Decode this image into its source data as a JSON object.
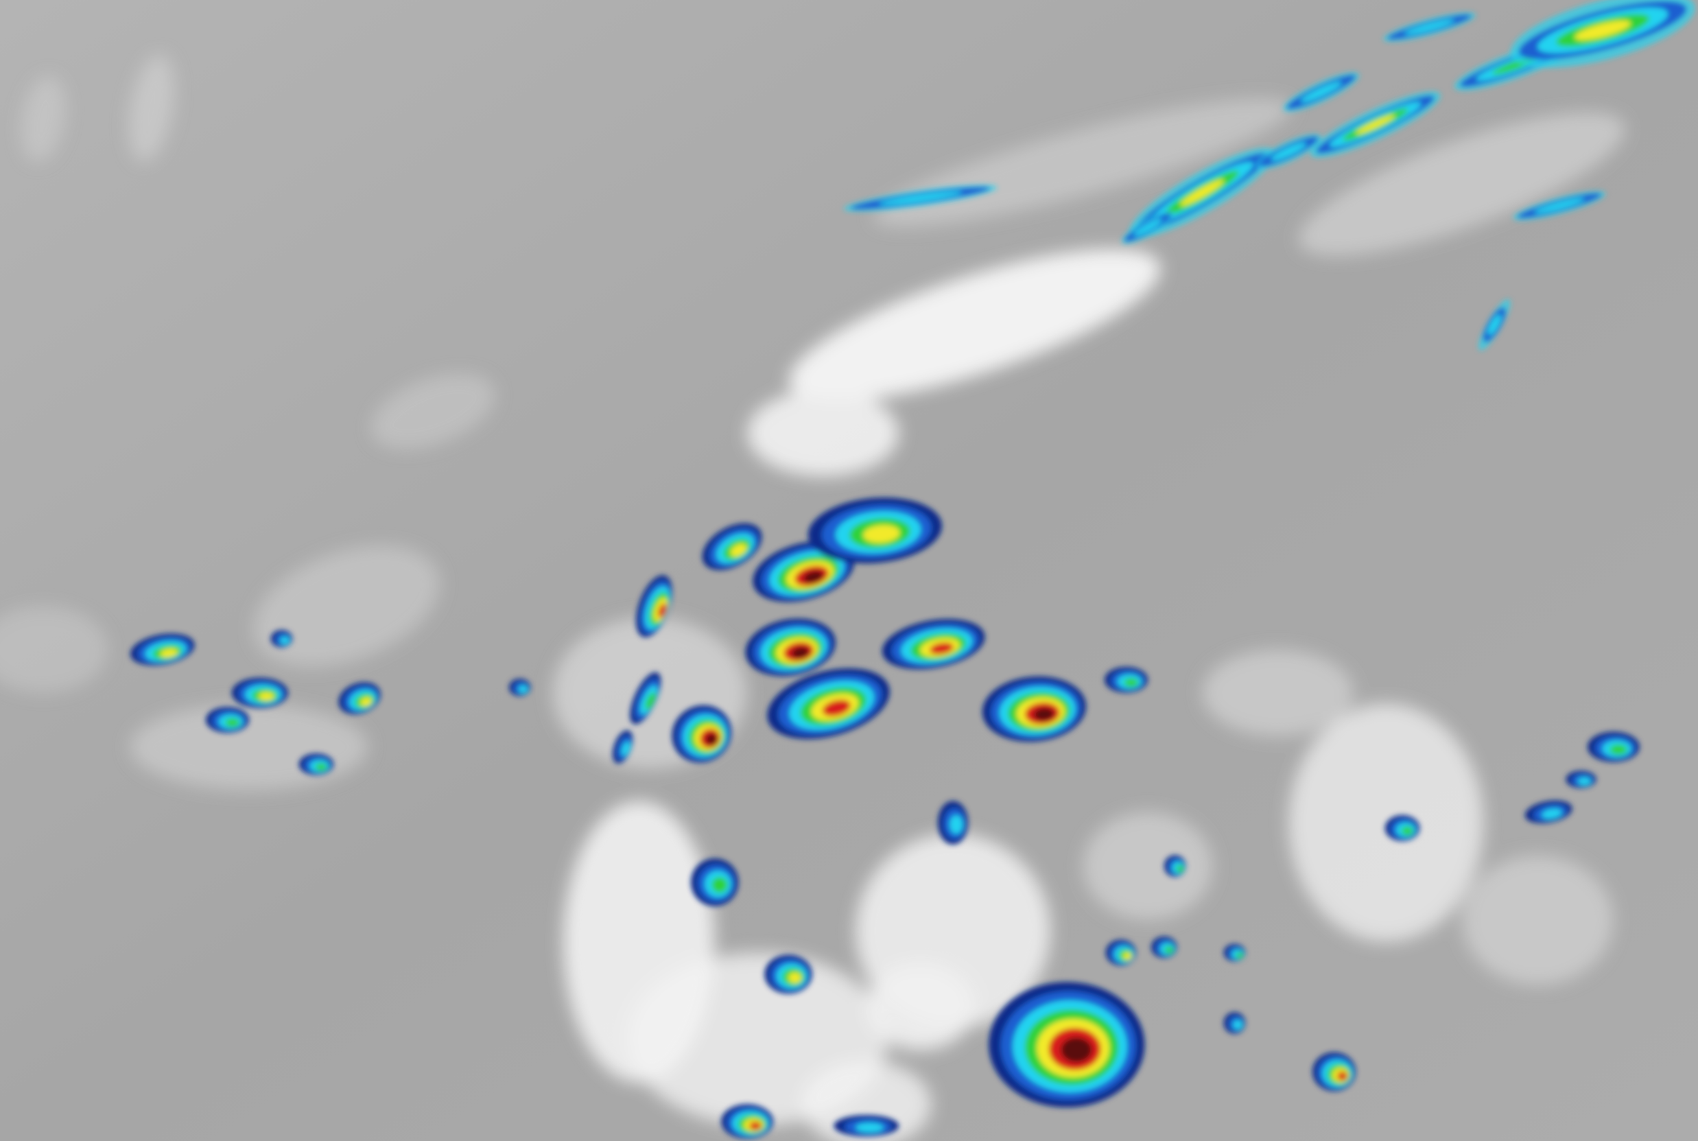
{
  "imagery": {
    "background_gray": "#a8a8a8",
    "cloud_white": "#f4f4f4",
    "cloud_light": "#d6d6d6",
    "enhancement_colors": {
      "dark_blue": "#0a2a8a",
      "blue": "#1f5fd0",
      "cyan": "#22d3f0",
      "green": "#2fd23a",
      "yellow": "#f2ea2a",
      "orange": "#f08a1a",
      "red": "#d81e1e",
      "dark_red": "#5a0a0a"
    }
  }
}
